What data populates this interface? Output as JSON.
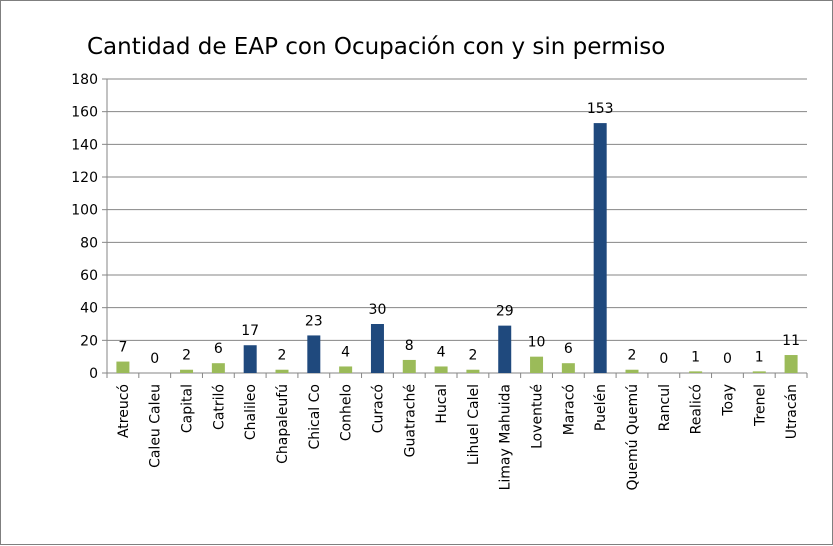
{
  "chart_data": {
    "type": "bar",
    "title": "Cantidad de EAP con Ocupación con y sin permiso",
    "xlabel": "",
    "ylabel": "",
    "ylim": [
      0,
      180
    ],
    "yticks": [
      0,
      20,
      40,
      60,
      80,
      100,
      120,
      140,
      160,
      180
    ],
    "grid": true,
    "legend": "none",
    "categories": [
      "Atreucó",
      "Caleu Caleu",
      "Capital",
      "Catriló",
      "Chalileo",
      "Chapaleufú",
      "Chical Co",
      "Conhelo",
      "Curacó",
      "Guatraché",
      "Hucal",
      "Lihuel Calel",
      "Limay Mahuida",
      "Loventué",
      "Maracó",
      "Puelén",
      "Quemú Quemú",
      "Rancul",
      "Realicó",
      "Toay",
      "Trenel",
      "Utracán"
    ],
    "values": [
      7,
      0,
      2,
      6,
      17,
      2,
      23,
      4,
      30,
      8,
      4,
      2,
      29,
      10,
      6,
      153,
      2,
      0,
      1,
      0,
      1,
      11
    ],
    "bar_colors": [
      "#9bbb59",
      "#9bbb59",
      "#9bbb59",
      "#9bbb59",
      "#1f497d",
      "#9bbb59",
      "#1f497d",
      "#9bbb59",
      "#1f497d",
      "#9bbb59",
      "#9bbb59",
      "#9bbb59",
      "#1f497d",
      "#9bbb59",
      "#9bbb59",
      "#1f497d",
      "#9bbb59",
      "#9bbb59",
      "#9bbb59",
      "#9bbb59",
      "#9bbb59",
      "#9bbb59"
    ],
    "colors": {
      "highlight": "#1f497d",
      "default": "#9bbb59",
      "grid": "#868686"
    }
  }
}
